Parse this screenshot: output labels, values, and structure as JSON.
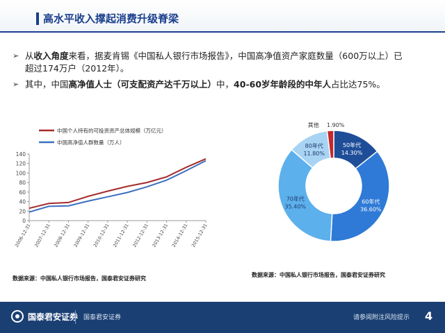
{
  "header": {
    "title": "高水平收入撑起消费升级脊梁"
  },
  "bullets": [
    {
      "a": "从",
      "b": "收入角度",
      "c": "来看，据麦肯锡《中国私人银行市场报告》，中国高净值资产家庭数量（600万以上）已",
      "d": "超过174万户（2012年）。"
    },
    {
      "a": "其中，中国",
      "b": "高净值人士（可支配资产达千万以上）",
      "c": "中，",
      "d": "40-60岁年龄段的中年人",
      "e": "占比达75%。"
    }
  ],
  "chart_data": [
    {
      "type": "line",
      "categories": [
        "2006-12-31",
        "2007-12-31",
        "2008-12-31",
        "2009-12-31",
        "2010-12-31",
        "2011-12-31",
        "2012-12-31",
        "2013-12-31",
        "2014-12-31",
        "2015-12-31"
      ],
      "series": [
        {
          "name": "中国个人持有的可投资资产总体规模（万亿元）",
          "color": "#a52a2a",
          "values": [
            26,
            36,
            38,
            51,
            62,
            72,
            80,
            92,
            112,
            130
          ]
        },
        {
          "name": "中国高净值人群数量（万人）",
          "color": "#3a6fbf",
          "values": [
            18,
            30,
            31,
            41,
            50,
            59,
            71,
            85,
            105,
            126
          ]
        }
      ],
      "yticks": [
        0,
        20,
        40,
        60,
        80,
        100,
        120,
        140
      ],
      "ylim": [
        0,
        140
      ],
      "legend": "top-left",
      "grid": false
    },
    {
      "type": "pie",
      "style": "donut",
      "slices": [
        {
          "label": "50年代",
          "pct": "14.30%",
          "value": 14.3,
          "color": "#1f4e99"
        },
        {
          "label": "60年代",
          "pct": "36.60%",
          "value": 36.6,
          "color": "#2e7ad6"
        },
        {
          "label": "70年代",
          "pct": "35.40%",
          "value": 35.4,
          "color": "#5cb0ec"
        },
        {
          "label": "80年代",
          "pct": "11.80%",
          "value": 11.8,
          "color": "#a8d3f3"
        },
        {
          "label": "其他",
          "pct": "1.90%",
          "value": 1.9,
          "color": "#c0282d"
        }
      ]
    }
  ],
  "sources": {
    "line": "数据来源：中国私人银行市场报告，国泰君安证券研究",
    "pie": "数据来源：中国私人银行市场报告，国泰君安证券研究"
  },
  "footer": {
    "logo_text": "国泰君安证券",
    "company": "国泰君安证券",
    "risk": "请参阅附注风险提示",
    "page": "4"
  }
}
